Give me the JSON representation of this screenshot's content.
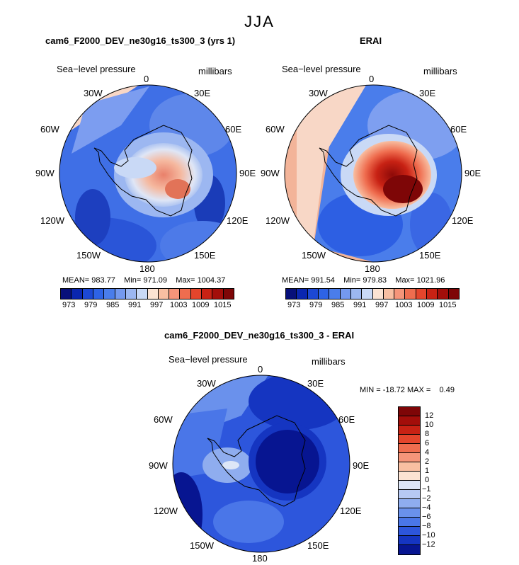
{
  "page_title": "JJA",
  "panels": [
    {
      "title": "cam6_F2000_DEV_ne30g16_ts300_3 (yrs 1)",
      "field_label": "Sea−level pressure",
      "units_label": "millibars",
      "lon_labels": [
        "0",
        "30E",
        "60E",
        "90E",
        "120E",
        "150E",
        "180",
        "150W",
        "120W",
        "90W",
        "60W",
        "30W"
      ],
      "stats": {
        "mean_label": "MEAN=",
        "mean": "983.77",
        "min_label": "Min=",
        "min": "971.09",
        "max_label": "Max=",
        "max": "1004.37"
      },
      "colorbar_ticks": [
        "973",
        "979",
        "985",
        "991",
        "997",
        "1003",
        "1009",
        "1015"
      ]
    },
    {
      "title": "ERAI",
      "field_label": "Sea−level pressure",
      "units_label": "millibars",
      "lon_labels": [
        "0",
        "30E",
        "60E",
        "90E",
        "120E",
        "150E",
        "180",
        "150W",
        "120W",
        "90W",
        "60W",
        "30W"
      ],
      "stats": {
        "mean_label": "MEAN=",
        "mean": "991.54",
        "min_label": "Min=",
        "min": "979.83",
        "max_label": "Max=",
        "max": "1021.96"
      },
      "colorbar_ticks": [
        "973",
        "979",
        "985",
        "991",
        "997",
        "1003",
        "1009",
        "1015"
      ]
    },
    {
      "title": "cam6_F2000_DEV_ne30g16_ts300_3 - ERAI",
      "field_label": "Sea−level pressure",
      "units_label": "millibars",
      "lon_labels": [
        "0",
        "30E",
        "60E",
        "90E",
        "120E",
        "150E",
        "180",
        "150W",
        "120W",
        "90W",
        "60W",
        "30W"
      ],
      "stats": {
        "min_label": "MIN =",
        "min": "-18.72",
        "max_label": "MAX =",
        "max": "0.49"
      },
      "colorbar_ticks": [
        "12",
        "10",
        "8",
        "6",
        "4",
        "2",
        "1",
        "0",
        "−1",
        "−2",
        "−4",
        "−6",
        "−8",
        "−10",
        "−12"
      ]
    }
  ],
  "colorbar_colors_abs": [
    "#07107a",
    "#0a26b0",
    "#1c48d4",
    "#2e63e5",
    "#4a7deb",
    "#7499ef",
    "#9cb7f1",
    "#c9d9f6",
    "#fbe3d3",
    "#f8bfa2",
    "#f5957a",
    "#ef6d4f",
    "#e4452c",
    "#c82214",
    "#a30e0a",
    "#7e0607"
  ],
  "colorbar_colors_diff": [
    "#7e0607",
    "#a30e0a",
    "#c82214",
    "#e4452c",
    "#ef6d4f",
    "#f5957a",
    "#f8bfa2",
    "#fbe3d3",
    "#dde6f7",
    "#b7c9f3",
    "#8fadef",
    "#6a91ec",
    "#4a76e8",
    "#2d56dc",
    "#1535c1",
    "#071591"
  ],
  "chart_data": [
    {
      "type": "heatmap",
      "projection": "south-polar-stereographic",
      "title": "cam6_F2000_DEV_ne30g16_ts300_3 (yrs 1)",
      "variable": "Sea-level pressure",
      "units": "millibars",
      "season": "JJA",
      "mean": 983.77,
      "min": 971.09,
      "max": 1004.37,
      "contour_levels": [
        973,
        976,
        979,
        982,
        985,
        988,
        991,
        994,
        997,
        1000,
        1003,
        1006,
        1009,
        1012,
        1015
      ]
    },
    {
      "type": "heatmap",
      "projection": "south-polar-stereographic",
      "title": "ERAI",
      "variable": "Sea-level pressure",
      "units": "millibars",
      "season": "JJA",
      "mean": 991.54,
      "min": 979.83,
      "max": 1021.96,
      "contour_levels": [
        973,
        976,
        979,
        982,
        985,
        988,
        991,
        994,
        997,
        1000,
        1003,
        1006,
        1009,
        1012,
        1015
      ]
    },
    {
      "type": "heatmap",
      "projection": "south-polar-stereographic",
      "title": "cam6_F2000_DEV_ne30g16_ts300_3 - ERAI",
      "variable": "Sea-level pressure difference",
      "units": "millibars",
      "season": "JJA",
      "min": -18.72,
      "max": 0.49,
      "contour_levels": [
        -12,
        -10,
        -8,
        -6,
        -4,
        -2,
        -1,
        0,
        1,
        2,
        4,
        6,
        8,
        10,
        12
      ]
    }
  ]
}
